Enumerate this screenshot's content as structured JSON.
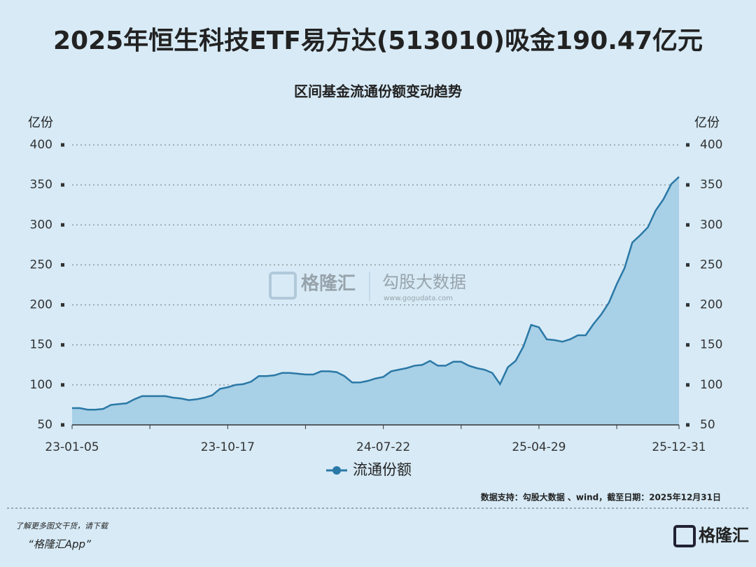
{
  "chart_data": {
    "type": "area",
    "title": "2025年恒生科技ETF易方达(513010)吸金190.47亿元",
    "subtitle": "区间基金流通份额变动趋势",
    "y_label": "亿份",
    "categories": [
      "23-01-05",
      null,
      null,
      null,
      null,
      null,
      null,
      null,
      null,
      null,
      null,
      null,
      null,
      null,
      null,
      null,
      null,
      null,
      null,
      null,
      "23-10-17",
      null,
      null,
      null,
      null,
      null,
      null,
      null,
      null,
      null,
      null,
      null,
      null,
      null,
      null,
      null,
      null,
      null,
      null,
      null,
      "24-07-22",
      null,
      null,
      null,
      null,
      null,
      null,
      null,
      null,
      null,
      null,
      null,
      null,
      null,
      null,
      null,
      null,
      null,
      null,
      null,
      "25-04-29",
      null,
      null,
      null,
      null,
      null,
      null,
      null,
      null,
      null,
      null,
      null,
      null,
      null,
      null,
      null,
      null,
      null,
      "25-12-31"
    ],
    "series": [
      {
        "name": "流通份额",
        "color": "#2a78a6",
        "fill": "#a8d0e6",
        "values": [
          71,
          71,
          69,
          69,
          70,
          75,
          76,
          77,
          82,
          86,
          86,
          86,
          86,
          84,
          83,
          81,
          82,
          84,
          87,
          95,
          97,
          100,
          101,
          104,
          111,
          111,
          112,
          115,
          115,
          114,
          113,
          113,
          117,
          117,
          116,
          111,
          103,
          103,
          105,
          108,
          110,
          117,
          119,
          121,
          124,
          125,
          130,
          124,
          124,
          129,
          129,
          124,
          121,
          119,
          115,
          101,
          122,
          130,
          148,
          175,
          172,
          157,
          156,
          154,
          157,
          162,
          162,
          176,
          188,
          203,
          226,
          246,
          278,
          287,
          297,
          318,
          332,
          351,
          360
        ]
      }
    ],
    "ylim": [
      50,
      400
    ],
    "yticks": [
      50,
      100,
      150,
      200,
      250,
      300,
      350,
      400
    ],
    "grid": true,
    "source": "数据支持：勾股大数据 、wind，截至日期：2025年12月31日",
    "watermark": {
      "brand": "格隆汇",
      "partner": "勾股大数据",
      "url": "www.gogudata.com"
    },
    "footer": {
      "line1": "了解更多图文干货，请下载",
      "line2": "“格隆汇App”",
      "logo": "格隆汇"
    }
  }
}
